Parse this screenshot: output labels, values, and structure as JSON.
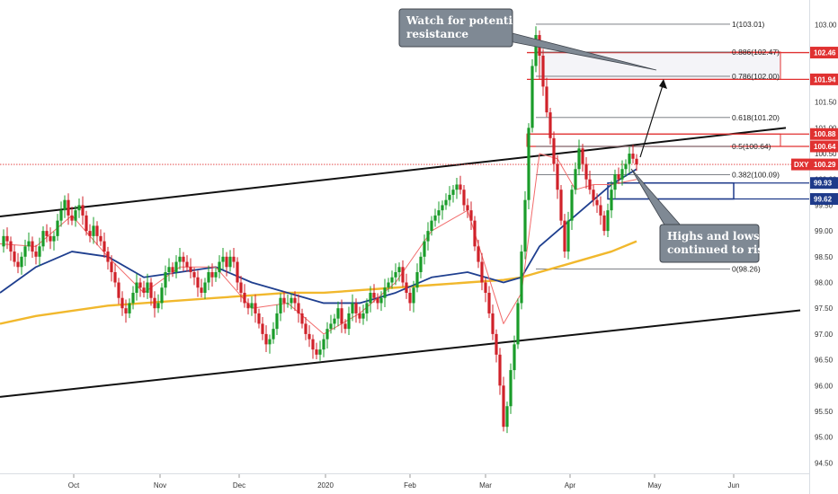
{
  "chart_data": {
    "type": "candlestick",
    "symbol": "DXY",
    "current_price": 100.29,
    "y_axis": {
      "ylim": [
        94.28,
        103.48
      ],
      "ticks": [
        "103.00",
        "102.50",
        "102.00",
        "101.50",
        "101.00",
        "100.50",
        "100.00",
        "99.50",
        "99.00",
        "98.50",
        "98.00",
        "97.50",
        "97.00",
        "96.50",
        "96.00",
        "95.50",
        "95.00",
        "94.50"
      ],
      "tick_values": [
        103.0,
        102.5,
        102.0,
        101.5,
        101.0,
        100.5,
        100.0,
        99.5,
        99.0,
        98.5,
        98.0,
        97.5,
        97.0,
        96.5,
        96.0,
        95.5,
        95.0,
        94.5
      ]
    },
    "x_axis": {
      "labels": [
        "Oct",
        "Nov",
        "Dec",
        "2020",
        "Feb",
        "Mar",
        "Apr",
        "May",
        "Jun"
      ]
    },
    "fibonacci_levels": [
      {
        "label": "1(103.01)",
        "value": 103.01
      },
      {
        "label": "0.886(102.47)",
        "value": 102.47
      },
      {
        "label": "0.786(102.00)",
        "value": 102.0
      },
      {
        "label": "0.618(101.20)",
        "value": 101.2
      },
      {
        "label": "0.5(100.64)",
        "value": 100.64
      },
      {
        "label": "0.382(100.09)",
        "value": 100.09
      },
      {
        "label": "0(98.26)",
        "value": 98.26
      }
    ],
    "price_tags": [
      {
        "label": "102.46",
        "value": 102.46,
        "color": "#e03131"
      },
      {
        "label": "101.94",
        "value": 101.94,
        "color": "#e03131"
      },
      {
        "label": "100.88",
        "value": 100.88,
        "color": "#e03131"
      },
      {
        "label": "100.64",
        "value": 100.64,
        "color": "#e03131"
      },
      {
        "label": "100.29",
        "value": 100.29,
        "color": "#e03131"
      },
      {
        "label": "99.93",
        "value": 99.93,
        "color": "#1e3a8a"
      },
      {
        "label": "99.62",
        "value": 99.62,
        "color": "#1e3a8a"
      }
    ],
    "annotations": [
      {
        "lines": [
          "Watch for potential",
          "resistance"
        ]
      },
      {
        "lines": [
          "Highs and lows",
          "continued to rise"
        ]
      }
    ],
    "series": [
      {
        "name": "",
        "kind": "price",
        "color_up": "#1a9c2a",
        "color_down": "#d0222a"
      },
      {
        "name": "",
        "kind": "ma",
        "color": "#f26b6b"
      },
      {
        "name": "",
        "kind": "ma",
        "color": "#1f3f8f"
      },
      {
        "name": "",
        "kind": "ma",
        "color": "#f1b82d"
      }
    ],
    "close_path": [
      [
        0,
        98.7
      ],
      [
        4,
        98.9
      ],
      [
        8,
        98.8
      ],
      [
        12,
        98.6
      ],
      [
        16,
        98.4
      ],
      [
        20,
        98.3
      ],
      [
        24,
        98.5
      ],
      [
        28,
        98.7
      ],
      [
        32,
        98.8
      ],
      [
        36,
        98.6
      ],
      [
        40,
        98.5
      ],
      [
        44,
        98.7
      ],
      [
        48,
        99.0
      ],
      [
        52,
        98.9
      ],
      [
        56,
        98.8
      ],
      [
        60,
        98.9
      ],
      [
        64,
        99.2
      ],
      [
        68,
        99.4
      ],
      [
        72,
        99.6
      ],
      [
        76,
        99.3
      ],
      [
        80,
        99.2
      ],
      [
        84,
        99.4
      ],
      [
        88,
        99.5
      ],
      [
        92,
        99.3
      ],
      [
        96,
        99.0
      ],
      [
        100,
        98.9
      ],
      [
        104,
        99.1
      ],
      [
        108,
        98.9
      ],
      [
        112,
        98.8
      ],
      [
        116,
        98.6
      ],
      [
        120,
        98.4
      ],
      [
        124,
        98.2
      ],
      [
        128,
        98.0
      ],
      [
        132,
        97.7
      ],
      [
        136,
        97.5
      ],
      [
        140,
        97.4
      ],
      [
        144,
        97.6
      ],
      [
        148,
        97.8
      ],
      [
        152,
        98.0
      ],
      [
        156,
        97.9
      ],
      [
        160,
        97.8
      ],
      [
        164,
        98.0
      ],
      [
        168,
        97.7
      ],
      [
        172,
        97.5
      ],
      [
        176,
        97.6
      ],
      [
        180,
        97.9
      ],
      [
        184,
        98.2
      ],
      [
        188,
        98.3
      ],
      [
        192,
        98.2
      ],
      [
        196,
        98.4
      ],
      [
        200,
        98.5
      ],
      [
        204,
        98.4
      ],
      [
        208,
        98.3
      ],
      [
        212,
        98.2
      ],
      [
        216,
        98.1
      ],
      [
        220,
        97.9
      ],
      [
        224,
        97.8
      ],
      [
        228,
        98.0
      ],
      [
        232,
        98.2
      ],
      [
        236,
        98.1
      ],
      [
        240,
        98.2
      ],
      [
        244,
        98.4
      ],
      [
        248,
        98.5
      ],
      [
        252,
        98.3
      ],
      [
        256,
        98.5
      ],
      [
        260,
        98.4
      ],
      [
        264,
        98.0
      ],
      [
        268,
        97.8
      ],
      [
        272,
        97.6
      ],
      [
        276,
        97.5
      ],
      [
        280,
        97.6
      ],
      [
        284,
        97.4
      ],
      [
        288,
        97.2
      ],
      [
        292,
        97.0
      ],
      [
        296,
        96.8
      ],
      [
        300,
        96.9
      ],
      [
        304,
        97.1
      ],
      [
        308,
        97.4
      ],
      [
        312,
        97.7
      ],
      [
        316,
        97.6
      ],
      [
        320,
        97.6
      ],
      [
        324,
        97.7
      ],
      [
        328,
        97.6
      ],
      [
        332,
        97.4
      ],
      [
        336,
        97.2
      ],
      [
        340,
        97.0
      ],
      [
        344,
        96.9
      ],
      [
        348,
        96.7
      ],
      [
        352,
        96.6
      ],
      [
        356,
        96.7
      ],
      [
        360,
        96.9
      ],
      [
        364,
        97.1
      ],
      [
        368,
        97.2
      ],
      [
        372,
        97.3
      ],
      [
        376,
        97.5
      ],
      [
        380,
        97.2
      ],
      [
        384,
        97.1
      ],
      [
        388,
        97.4
      ],
      [
        392,
        97.6
      ],
      [
        396,
        97.4
      ],
      [
        400,
        97.3
      ],
      [
        404,
        97.4
      ],
      [
        408,
        97.6
      ],
      [
        412,
        97.8
      ],
      [
        416,
        97.7
      ],
      [
        420,
        97.6
      ],
      [
        424,
        97.7
      ],
      [
        428,
        97.9
      ],
      [
        432,
        98.0
      ],
      [
        436,
        98.1
      ],
      [
        440,
        98.2
      ],
      [
        444,
        98.3
      ],
      [
        448,
        98.0
      ],
      [
        452,
        97.8
      ],
      [
        456,
        97.6
      ],
      [
        460,
        97.9
      ],
      [
        464,
        98.2
      ],
      [
        468,
        98.5
      ],
      [
        472,
        98.8
      ],
      [
        476,
        99.0
      ],
      [
        480,
        99.2
      ],
      [
        484,
        99.3
      ],
      [
        488,
        99.4
      ],
      [
        492,
        99.5
      ],
      [
        496,
        99.6
      ],
      [
        500,
        99.7
      ],
      [
        504,
        99.8
      ],
      [
        508,
        99.9
      ],
      [
        512,
        99.8
      ],
      [
        516,
        99.5
      ],
      [
        520,
        99.4
      ],
      [
        524,
        99.2
      ],
      [
        528,
        98.7
      ],
      [
        532,
        98.4
      ],
      [
        536,
        98.0
      ],
      [
        540,
        97.8
      ],
      [
        544,
        97.4
      ],
      [
        548,
        97.0
      ],
      [
        552,
        96.6
      ],
      [
        556,
        96.0
      ],
      [
        560,
        95.2
      ],
      [
        564,
        95.6
      ],
      [
        568,
        96.3
      ],
      [
        572,
        96.8
      ],
      [
        576,
        97.6
      ],
      [
        580,
        98.6
      ],
      [
        584,
        99.6
      ],
      [
        588,
        101.0
      ],
      [
        592,
        102.2
      ],
      [
        596,
        102.8
      ],
      [
        600,
        102.4
      ],
      [
        604,
        101.8
      ],
      [
        608,
        101.3
      ],
      [
        612,
        100.8
      ],
      [
        616,
        100.3
      ],
      [
        620,
        99.8
      ],
      [
        624,
        99.2
      ],
      [
        628,
        98.6
      ],
      [
        632,
        99.2
      ],
      [
        636,
        99.8
      ],
      [
        640,
        100.2
      ],
      [
        644,
        100.6
      ],
      [
        648,
        100.3
      ],
      [
        652,
        100.0
      ],
      [
        656,
        99.8
      ],
      [
        660,
        99.6
      ],
      [
        664,
        99.5
      ],
      [
        668,
        99.3
      ],
      [
        672,
        99.0
      ],
      [
        676,
        99.4
      ],
      [
        680,
        99.8
      ],
      [
        684,
        100.1
      ],
      [
        688,
        100.0
      ],
      [
        692,
        100.2
      ],
      [
        696,
        100.3
      ],
      [
        700,
        100.5
      ],
      [
        704,
        100.4
      ],
      [
        708,
        100.29
      ]
    ],
    "ma_fast": [
      [
        0,
        98.75
      ],
      [
        40,
        98.7
      ],
      [
        80,
        99.3
      ],
      [
        120,
        98.5
      ],
      [
        160,
        97.8
      ],
      [
        200,
        98.3
      ],
      [
        240,
        98.3
      ],
      [
        280,
        97.5
      ],
      [
        320,
        97.6
      ],
      [
        360,
        97.0
      ],
      [
        400,
        97.4
      ],
      [
        440,
        98.0
      ],
      [
        480,
        99.0
      ],
      [
        520,
        99.4
      ],
      [
        560,
        97.2
      ],
      [
        580,
        97.8
      ],
      [
        600,
        100.5
      ],
      [
        620,
        100.4
      ],
      [
        640,
        99.8
      ],
      [
        660,
        99.9
      ],
      [
        680,
        99.9
      ],
      [
        708,
        100.0
      ]
    ],
    "ma_mid": [
      [
        0,
        97.8
      ],
      [
        40,
        98.3
      ],
      [
        80,
        98.6
      ],
      [
        120,
        98.5
      ],
      [
        160,
        98.1
      ],
      [
        200,
        98.2
      ],
      [
        240,
        98.3
      ],
      [
        280,
        98.0
      ],
      [
        320,
        97.8
      ],
      [
        360,
        97.6
      ],
      [
        400,
        97.6
      ],
      [
        440,
        97.8
      ],
      [
        480,
        98.1
      ],
      [
        520,
        98.2
      ],
      [
        560,
        98.0
      ],
      [
        580,
        98.1
      ],
      [
        600,
        98.7
      ],
      [
        620,
        99.0
      ],
      [
        640,
        99.3
      ],
      [
        660,
        99.6
      ],
      [
        680,
        99.9
      ],
      [
        708,
        100.2
      ]
    ],
    "ma_slow": [
      [
        0,
        97.2
      ],
      [
        40,
        97.35
      ],
      [
        80,
        97.45
      ],
      [
        120,
        97.55
      ],
      [
        160,
        97.6
      ],
      [
        200,
        97.65
      ],
      [
        240,
        97.7
      ],
      [
        280,
        97.75
      ],
      [
        320,
        97.8
      ],
      [
        360,
        97.8
      ],
      [
        400,
        97.85
      ],
      [
        440,
        97.9
      ],
      [
        480,
        97.95
      ],
      [
        520,
        98.0
      ],
      [
        560,
        98.05
      ],
      [
        580,
        98.1
      ],
      [
        600,
        98.2
      ],
      [
        620,
        98.3
      ],
      [
        640,
        98.4
      ],
      [
        660,
        98.5
      ],
      [
        680,
        98.6
      ],
      [
        708,
        98.8
      ]
    ]
  }
}
